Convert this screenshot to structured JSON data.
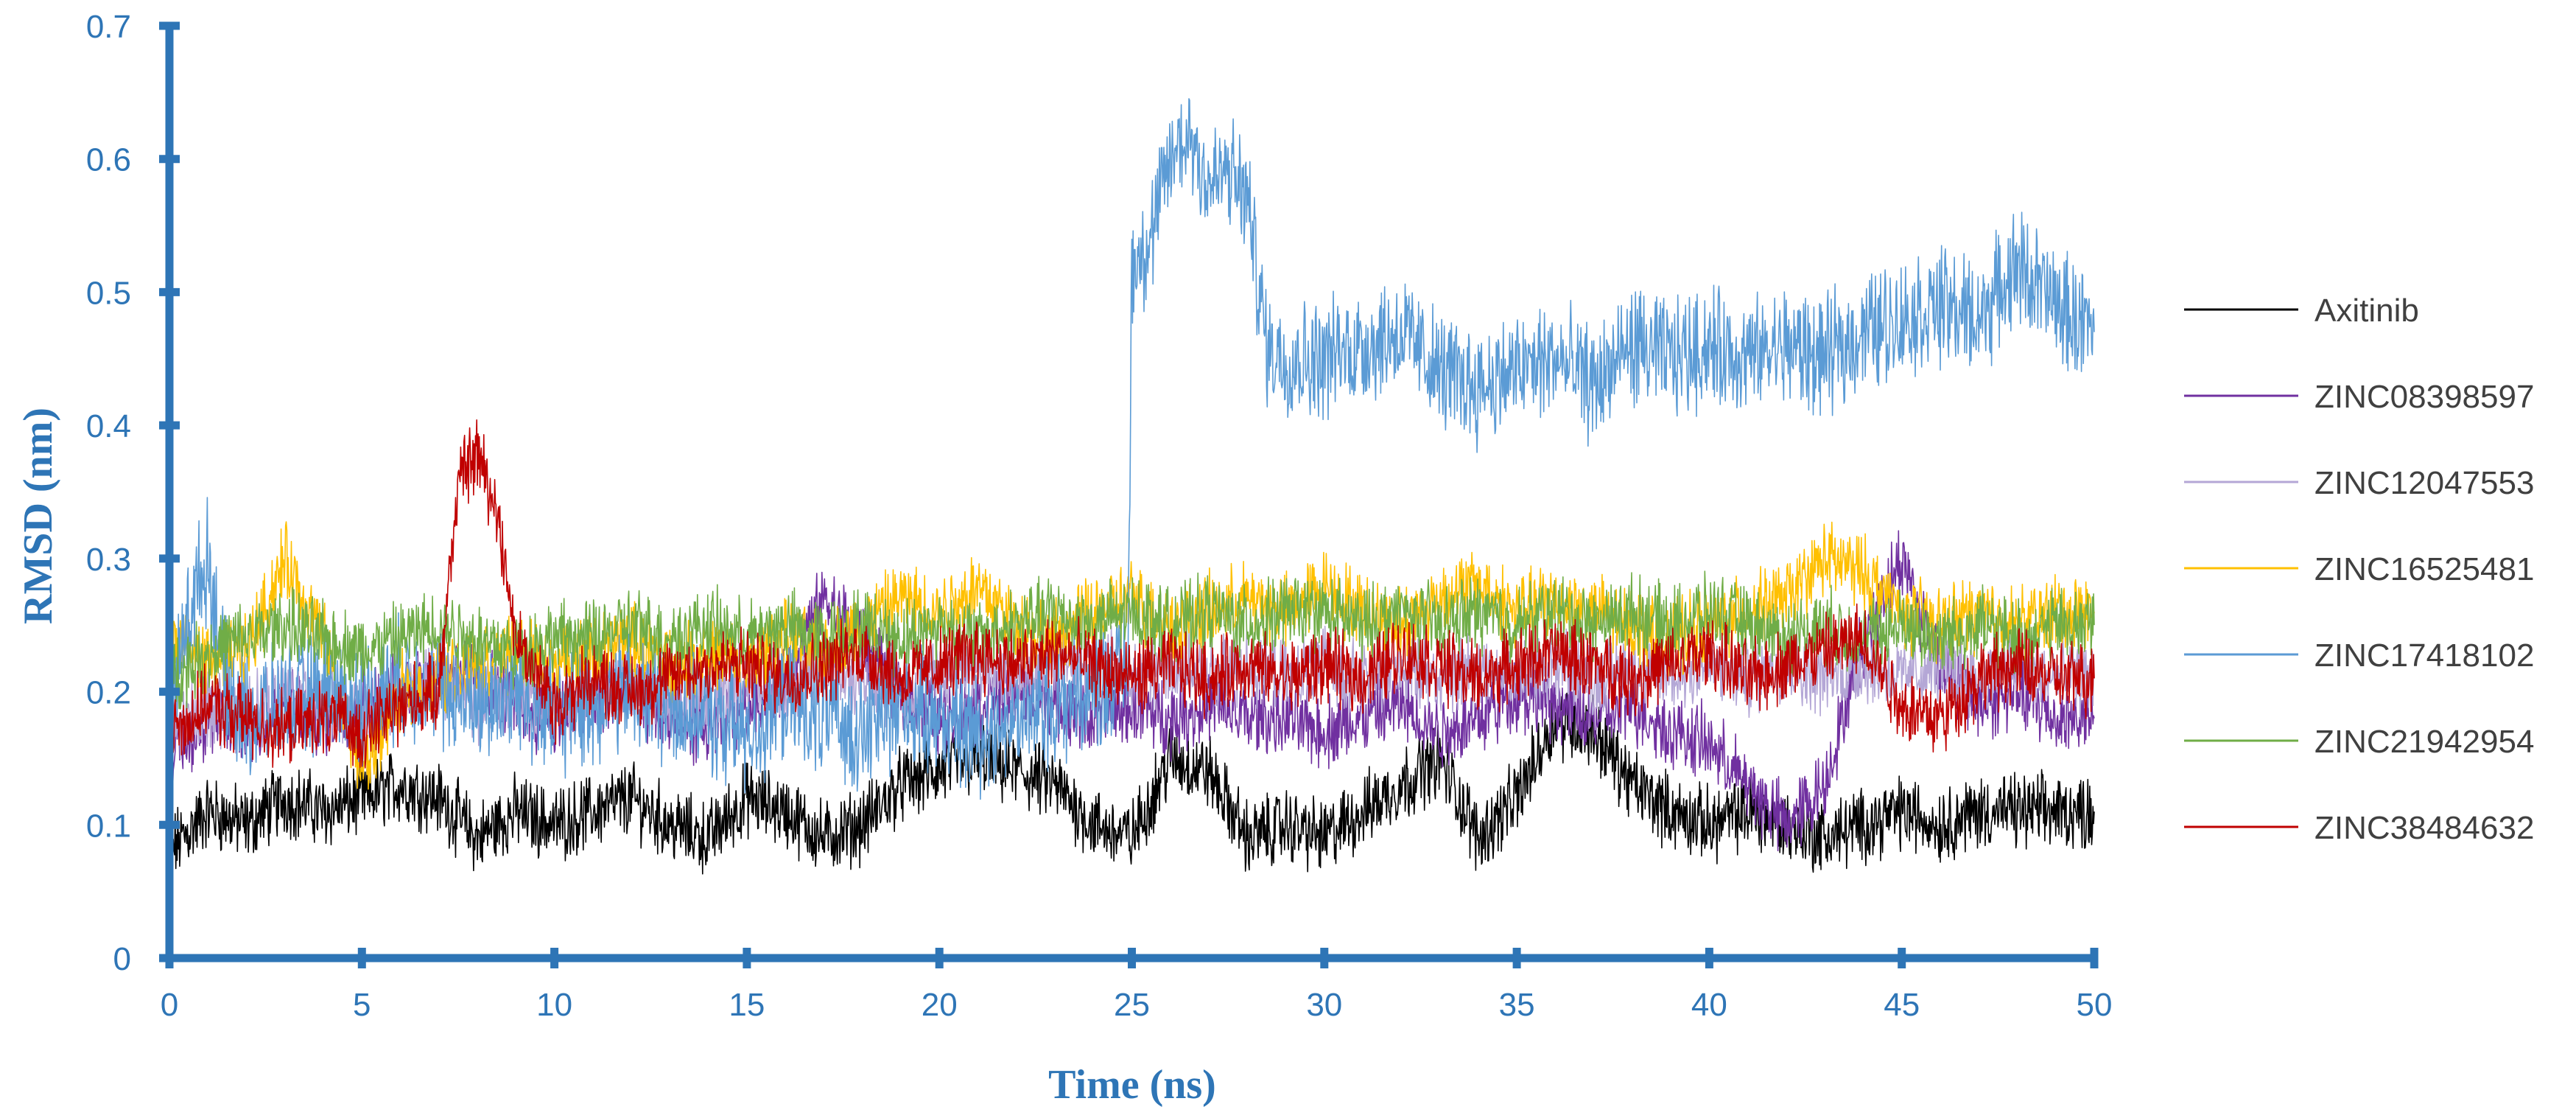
{
  "chart_data": {
    "type": "line",
    "title": "",
    "xlabel": "Time (ns)",
    "ylabel": "RMSD (nm)",
    "xlim": [
      0,
      50
    ],
    "ylim": [
      0,
      0.7
    ],
    "x_ticks": [
      0,
      5,
      10,
      15,
      20,
      25,
      30,
      35,
      40,
      45,
      50
    ],
    "y_ticks": [
      0,
      0.1,
      0.2,
      0.3,
      0.4,
      0.5,
      0.6,
      0.7
    ],
    "grid": false,
    "legend_position": "right",
    "axis_color": "#2e75b6",
    "series": [
      {
        "name": "Axitinib",
        "color": "#000000",
        "x": [
          0,
          1,
          2,
          3,
          4,
          5,
          6,
          7,
          8,
          9,
          10,
          11,
          12,
          13,
          14,
          15,
          16,
          17,
          18,
          19,
          20,
          21,
          22,
          23,
          24,
          25,
          26,
          27,
          28,
          29,
          30,
          31,
          32,
          33,
          34,
          35,
          36,
          37,
          38,
          39,
          40,
          41,
          42,
          43,
          44,
          45,
          46,
          47,
          48,
          49,
          50
        ],
        "y": [
          0.08,
          0.11,
          0.1,
          0.12,
          0.11,
          0.12,
          0.13,
          0.12,
          0.09,
          0.11,
          0.1,
          0.11,
          0.12,
          0.1,
          0.09,
          0.12,
          0.11,
          0.09,
          0.1,
          0.13,
          0.14,
          0.15,
          0.14,
          0.13,
          0.1,
          0.09,
          0.15,
          0.14,
          0.09,
          0.1,
          0.09,
          0.11,
          0.13,
          0.15,
          0.09,
          0.12,
          0.18,
          0.17,
          0.13,
          0.11,
          0.1,
          0.11,
          0.1,
          0.09,
          0.1,
          0.11,
          0.1,
          0.11,
          0.11,
          0.11,
          0.11
        ]
      },
      {
        "name": "ZINC08398597",
        "color": "#7030a0",
        "x": [
          0,
          1,
          2,
          3,
          4,
          5,
          6,
          7,
          8,
          9,
          10,
          11,
          12,
          13,
          14,
          15,
          16,
          17,
          18,
          19,
          20,
          21,
          22,
          23,
          24,
          25,
          26,
          27,
          28,
          29,
          30,
          31,
          32,
          33,
          34,
          35,
          36,
          37,
          38,
          39,
          40,
          41,
          42,
          43,
          44,
          45,
          46,
          47,
          48,
          49,
          50
        ],
        "y": [
          0.15,
          0.18,
          0.17,
          0.19,
          0.18,
          0.19,
          0.2,
          0.22,
          0.21,
          0.19,
          0.18,
          0.19,
          0.2,
          0.18,
          0.17,
          0.19,
          0.21,
          0.27,
          0.24,
          0.2,
          0.18,
          0.19,
          0.2,
          0.19,
          0.18,
          0.19,
          0.18,
          0.19,
          0.18,
          0.18,
          0.17,
          0.18,
          0.19,
          0.17,
          0.18,
          0.2,
          0.19,
          0.18,
          0.19,
          0.17,
          0.16,
          0.13,
          0.1,
          0.13,
          0.24,
          0.3,
          0.22,
          0.19,
          0.2,
          0.18,
          0.18
        ]
      },
      {
        "name": "ZINC12047553",
        "color": "#b4a7d6",
        "x": [
          0,
          1,
          2,
          3,
          4,
          5,
          6,
          7,
          8,
          9,
          10,
          11,
          12,
          13,
          14,
          15,
          16,
          17,
          18,
          19,
          20,
          21,
          22,
          23,
          24,
          25,
          26,
          27,
          28,
          29,
          30,
          31,
          32,
          33,
          34,
          35,
          36,
          37,
          38,
          39,
          40,
          41,
          42,
          43,
          44,
          45,
          46,
          47,
          48,
          49,
          50
        ],
        "y": [
          0.17,
          0.19,
          0.18,
          0.2,
          0.19,
          0.18,
          0.2,
          0.21,
          0.19,
          0.2,
          0.19,
          0.2,
          0.21,
          0.19,
          0.2,
          0.21,
          0.2,
          0.22,
          0.21,
          0.2,
          0.21,
          0.22,
          0.21,
          0.22,
          0.23,
          0.21,
          0.22,
          0.21,
          0.22,
          0.21,
          0.22,
          0.21,
          0.22,
          0.21,
          0.22,
          0.21,
          0.22,
          0.21,
          0.22,
          0.21,
          0.22,
          0.21,
          0.22,
          0.21,
          0.22,
          0.21,
          0.22,
          0.21,
          0.22,
          0.21,
          0.21
        ]
      },
      {
        "name": "ZINC16525481",
        "color": "#ffc000",
        "x": [
          0,
          1,
          2,
          3,
          4,
          5,
          6,
          7,
          8,
          9,
          10,
          11,
          12,
          13,
          14,
          15,
          16,
          17,
          18,
          19,
          20,
          21,
          22,
          23,
          24,
          25,
          26,
          27,
          28,
          29,
          30,
          31,
          32,
          33,
          34,
          35,
          36,
          37,
          38,
          39,
          40,
          41,
          42,
          43,
          44,
          45,
          46,
          47,
          48,
          49,
          50
        ],
        "y": [
          0.24,
          0.22,
          0.23,
          0.3,
          0.24,
          0.14,
          0.2,
          0.21,
          0.22,
          0.23,
          0.22,
          0.23,
          0.24,
          0.22,
          0.23,
          0.22,
          0.24,
          0.23,
          0.25,
          0.27,
          0.26,
          0.28,
          0.25,
          0.24,
          0.26,
          0.27,
          0.25,
          0.26,
          0.27,
          0.26,
          0.28,
          0.26,
          0.25,
          0.27,
          0.28,
          0.26,
          0.27,
          0.26,
          0.25,
          0.24,
          0.25,
          0.26,
          0.27,
          0.3,
          0.29,
          0.26,
          0.25,
          0.26,
          0.25,
          0.26,
          0.26
        ]
      },
      {
        "name": "ZINC17418102",
        "color": "#5b9bd5",
        "x": [
          0,
          0.5,
          1,
          1.5,
          2,
          3,
          4,
          5,
          6,
          7,
          8,
          9,
          10,
          11,
          12,
          13,
          14,
          15,
          16,
          17,
          18,
          19,
          20,
          21,
          22,
          23,
          24,
          24.9,
          25,
          25.5,
          26,
          26.5,
          27,
          27.5,
          28,
          28.5,
          29,
          30,
          31,
          32,
          33,
          34,
          35,
          36,
          37,
          38,
          39,
          40,
          41,
          42,
          43,
          44,
          45,
          46,
          47,
          48,
          49,
          50
        ],
        "y": [
          0.18,
          0.26,
          0.3,
          0.2,
          0.18,
          0.19,
          0.2,
          0.19,
          0.21,
          0.2,
          0.19,
          0.2,
          0.18,
          0.19,
          0.2,
          0.19,
          0.18,
          0.17,
          0.19,
          0.18,
          0.17,
          0.19,
          0.18,
          0.17,
          0.18,
          0.19,
          0.2,
          0.22,
          0.52,
          0.54,
          0.6,
          0.62,
          0.58,
          0.59,
          0.57,
          0.46,
          0.45,
          0.45,
          0.46,
          0.47,
          0.44,
          0.43,
          0.44,
          0.45,
          0.43,
          0.46,
          0.45,
          0.46,
          0.45,
          0.46,
          0.45,
          0.47,
          0.48,
          0.49,
          0.48,
          0.52,
          0.49,
          0.47
        ]
      },
      {
        "name": "ZINC21942954",
        "color": "#70ad47",
        "x": [
          0,
          1,
          2,
          3,
          4,
          5,
          6,
          7,
          8,
          9,
          10,
          11,
          12,
          13,
          14,
          15,
          16,
          17,
          18,
          19,
          20,
          21,
          22,
          23,
          24,
          25,
          26,
          27,
          28,
          29,
          30,
          31,
          32,
          33,
          34,
          35,
          36,
          37,
          38,
          39,
          40,
          41,
          42,
          43,
          44,
          45,
          46,
          47,
          48,
          49,
          50
        ],
        "y": [
          0.21,
          0.23,
          0.24,
          0.25,
          0.24,
          0.23,
          0.24,
          0.25,
          0.24,
          0.23,
          0.24,
          0.24,
          0.25,
          0.24,
          0.25,
          0.24,
          0.25,
          0.24,
          0.25,
          0.24,
          0.25,
          0.24,
          0.25,
          0.26,
          0.25,
          0.26,
          0.25,
          0.26,
          0.25,
          0.26,
          0.26,
          0.25,
          0.26,
          0.25,
          0.26,
          0.25,
          0.26,
          0.25,
          0.26,
          0.25,
          0.26,
          0.25,
          0.24,
          0.25,
          0.24,
          0.25,
          0.24,
          0.25,
          0.24,
          0.25,
          0.25
        ]
      },
      {
        "name": "ZINC38484632",
        "color": "#c00000",
        "x": [
          0,
          1,
          2,
          3,
          4,
          5,
          6,
          7,
          7.5,
          8,
          8.5,
          9,
          10,
          11,
          12,
          13,
          14,
          15,
          16,
          17,
          18,
          19,
          20,
          21,
          22,
          23,
          24,
          25,
          26,
          27,
          28,
          29,
          30,
          31,
          32,
          33,
          34,
          35,
          36,
          37,
          38,
          39,
          40,
          41,
          42,
          43,
          44,
          45,
          46,
          47,
          48,
          49,
          50
        ],
        "y": [
          0.17,
          0.19,
          0.18,
          0.17,
          0.18,
          0.17,
          0.19,
          0.2,
          0.36,
          0.38,
          0.34,
          0.24,
          0.19,
          0.21,
          0.2,
          0.21,
          0.22,
          0.22,
          0.21,
          0.22,
          0.23,
          0.21,
          0.22,
          0.23,
          0.22,
          0.23,
          0.22,
          0.21,
          0.22,
          0.21,
          0.22,
          0.21,
          0.22,
          0.21,
          0.23,
          0.22,
          0.21,
          0.22,
          0.23,
          0.22,
          0.21,
          0.22,
          0.23,
          0.21,
          0.22,
          0.23,
          0.24,
          0.19,
          0.18,
          0.21,
          0.22,
          0.21,
          0.21
        ]
      }
    ]
  }
}
